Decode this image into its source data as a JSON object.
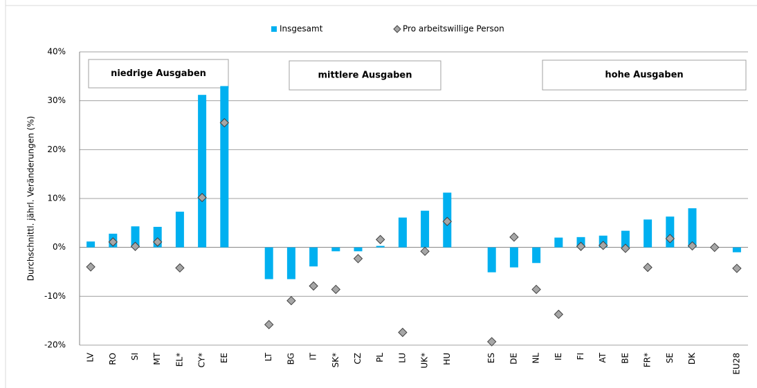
{
  "chart_data": {
    "type": "bar",
    "y_label": "Durchschnittl. jährl. Veränderungen (%)",
    "categories": [
      "LV",
      "RO",
      "SI",
      "MT",
      "EL*",
      "CY*",
      "EE",
      null,
      "LT",
      "BG",
      "IT",
      "SK*",
      "CZ",
      "PL",
      "LU",
      "UK*",
      "HU",
      null,
      "ES",
      "DE",
      "NL",
      "IE",
      "FI",
      "AT",
      "BE",
      "FR*",
      "SE",
      "DK",
      null,
      "EU28"
    ],
    "series": [
      {
        "name": "Insgesamt",
        "type": "bar",
        "color": "#00b0f0",
        "values": [
          1.2,
          2.8,
          4.3,
          4.2,
          7.3,
          31.2,
          33,
          null,
          -6.5,
          -6.5,
          -3.9,
          -0.8,
          -0.8,
          0.3,
          6.1,
          7.5,
          11.2,
          null,
          -5.1,
          -4.1,
          -3.2,
          2.0,
          2.1,
          2.4,
          3.4,
          5.7,
          6.3,
          8.0,
          null,
          -1.0
        ]
      },
      {
        "name": "Pro arbeitswillige Person",
        "type": "diamond",
        "color": "#a6a6a6",
        "values": [
          -4.0,
          1.1,
          0.2,
          1.1,
          -4.2,
          10.2,
          25.5,
          null,
          -15.8,
          -10.9,
          -7.9,
          -8.6,
          -2.3,
          1.6,
          -17.4,
          -0.8,
          5.3,
          null,
          -19.3,
          2.1,
          -8.6,
          -13.7,
          0.2,
          0.4,
          -0.2,
          -4.1,
          1.8,
          0.3,
          0,
          -4.3
        ]
      }
    ],
    "ylim": [
      -20,
      40
    ],
    "yticks": [
      {
        "value": -20,
        "label": "-20%"
      },
      {
        "value": -10,
        "label": "-10%"
      },
      {
        "value": 0,
        "label": "0%"
      },
      {
        "value": 10,
        "label": "10%"
      },
      {
        "value": 20,
        "label": "20%"
      },
      {
        "value": 30,
        "label": "30%"
      },
      {
        "value": 40,
        "label": "40%"
      }
    ],
    "grid": true,
    "annotations": [
      "niedrige Ausgaben",
      "mittlere Ausgaben",
      "hohe Ausgaben"
    ]
  }
}
